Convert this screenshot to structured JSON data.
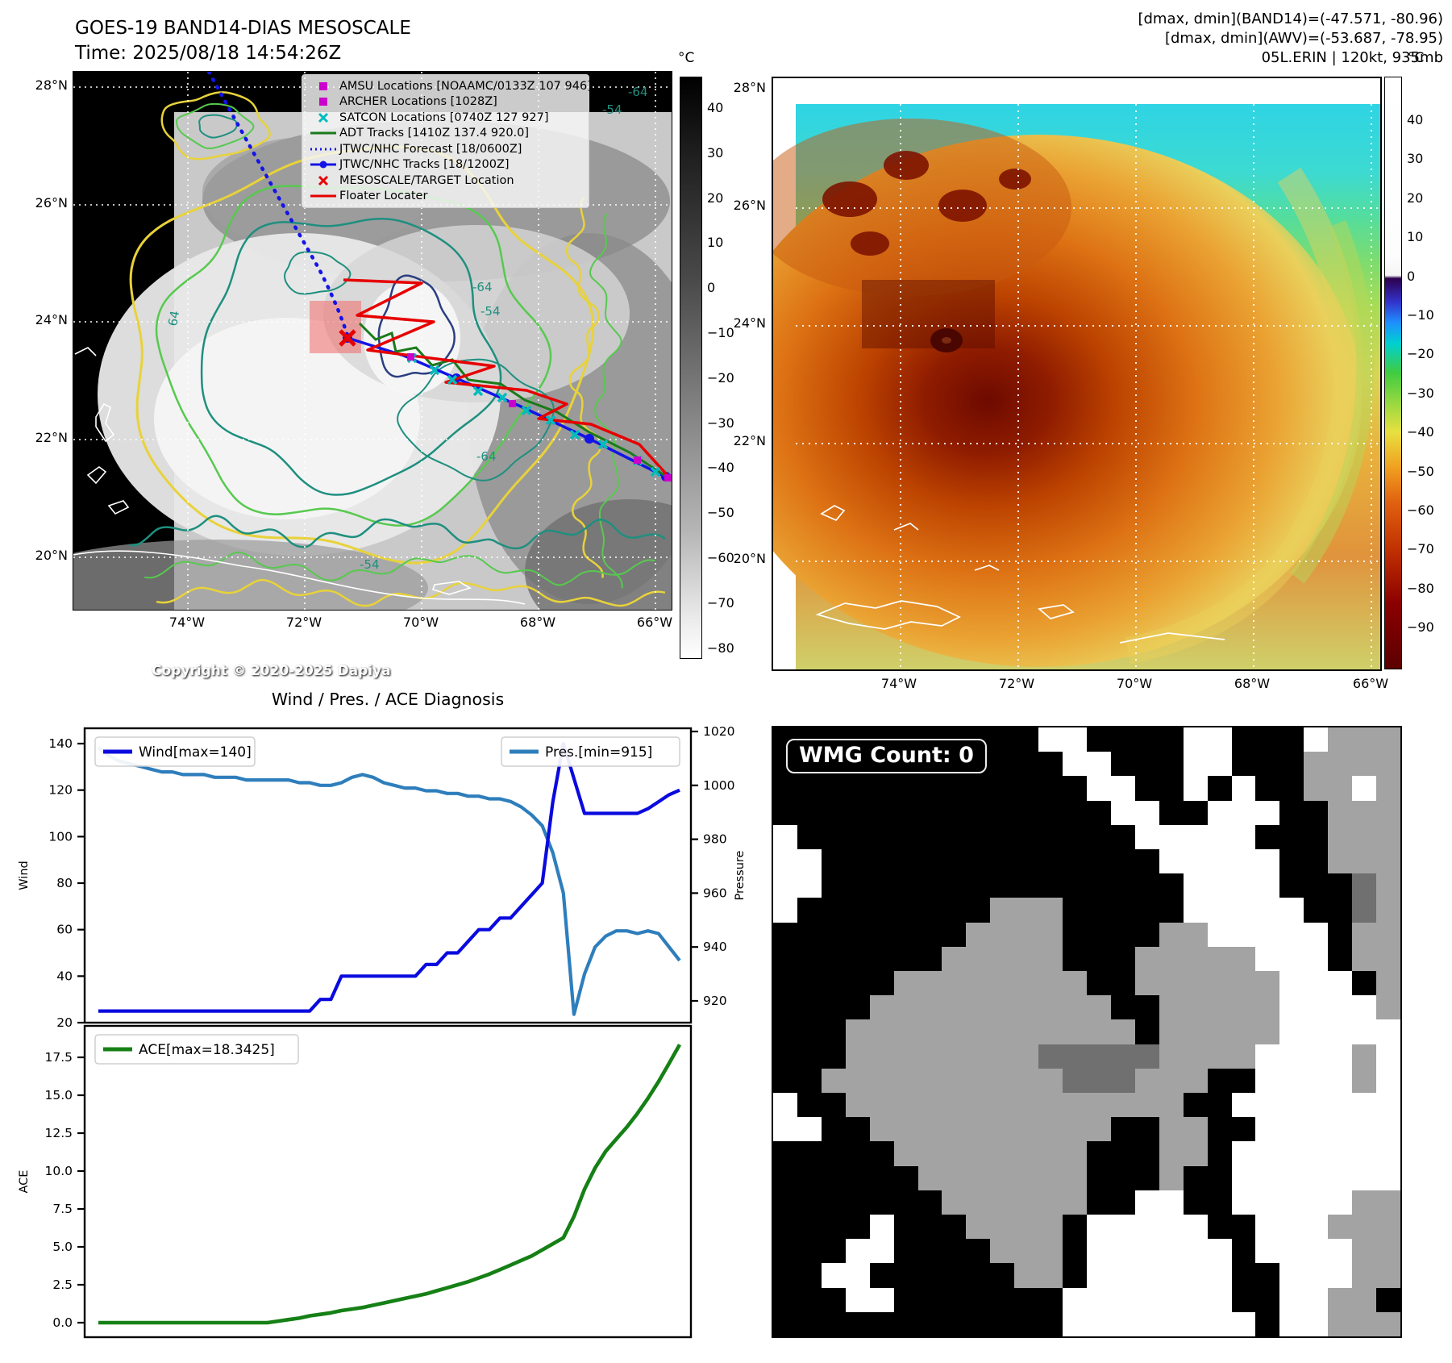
{
  "header_left": {
    "title": "GOES-19 BAND14-DIAS MESOSCALE",
    "time": "Time: 2025/08/18 14:54:26Z"
  },
  "header_right": {
    "line1": "[dmax, dmin](BAND14)=(-47.571, -80.96)",
    "line2": "[dmax, dmin](AWV)=(-53.687, -78.95)",
    "line3": "05L.ERIN | 120kt, 935mb"
  },
  "left_map": {
    "copyright": "Copyright © 2020-2025 Dapiya",
    "lat_ticks": [
      "28°N",
      "26°N",
      "24°N",
      "22°N",
      "20°N"
    ],
    "lon_ticks": [
      "74°W",
      "72°W",
      "70°W",
      "68°W",
      "66°W"
    ],
    "contour_labels": [
      "-64",
      "-54",
      "-64",
      "-54",
      "64",
      "-64",
      "-54"
    ],
    "colorbar": {
      "unit": "°C",
      "ticks": [
        40,
        30,
        20,
        10,
        0,
        -10,
        -20,
        -30,
        -40,
        -50,
        -60,
        -70,
        -80
      ]
    },
    "legend": [
      {
        "label": "AMSU Locations [NOAAMC/0133Z 107 946]",
        "marker": "square",
        "color": "#cc00cc"
      },
      {
        "label": "ARCHER Locations [1028Z]",
        "marker": "square",
        "color": "#cc00cc"
      },
      {
        "label": "SATCON Locations [0740Z 127 927]",
        "marker": "x",
        "color": "#00bcbc"
      },
      {
        "label": "ADT Tracks [1410Z 137.4 920.0]",
        "marker": "line",
        "color": "#1a7a1a"
      },
      {
        "label": "JTWC/NHC Forecast [18/0600Z]",
        "marker": "dotted",
        "color": "#1414e6"
      },
      {
        "label": "JTWC/NHC Tracks [18/1200Z]",
        "marker": "line-dot",
        "color": "#1414e6"
      },
      {
        "label": "MESOSCALE/TARGET Location",
        "marker": "x",
        "color": "#e60000"
      },
      {
        "label": "Floater Locater",
        "marker": "line",
        "color": "#e60000"
      }
    ]
  },
  "right_map": {
    "lat_ticks": [
      "28°N",
      "26°N",
      "24°N",
      "22°N",
      "20°N"
    ],
    "lon_ticks": [
      "74°W",
      "72°W",
      "70°W",
      "68°W",
      "66°W"
    ],
    "colorbar": {
      "unit": "°C",
      "ticks": [
        40,
        30,
        20,
        10,
        0,
        -10,
        -20,
        -30,
        -40,
        -50,
        -60,
        -70,
        -80,
        -90
      ]
    }
  },
  "wmg": {
    "label": "WMG Count: 0",
    "palette": {
      "b": "#000000",
      "w": "#ffffff",
      "g": "#a3a3a3",
      "d": "#707070"
    },
    "grid": [
      "bbbbbbbbbbbwwbbbbwwbbbwggg",
      "bbbbbbbbbbbbwwbbbwwbbbgggg",
      "bbbbbbbbbbbbbwwbbwbwbbggwg",
      "bbbbbbbbbbbbbbwwbbwwwbbggg",
      "wbbbbbbbbbbbbbbwwwwwbbbggg",
      "wwbbbbbbbbbbbbbbwwwwwbbggg",
      "wwbbbbbbbbbbbbbbbwwwwbbbdg",
      "wbbbbbbbbgggbbbbbwwwwwbbdg",
      "bbbbbbbbggggbbbbggwwwwwbgg",
      "bbbbbbbgggggbbbgggggwwwbgg",
      "bbbbbggggggggbbggggggwwwbg",
      "bbbbggggggggggbbgggggwwwwg",
      "bbbggggggggggggbgggggwwwww",
      "bbbggggggggdddddggggwwwwgw",
      "bbggggggggggdddgggbbwwwwgw",
      "wbbggggggggggggggbbwwwwwww",
      "wwbbggggggggggbbggbbwwwwww",
      "bbbbbggggggggbbbggbwwwwwww",
      "bbbbbbgggggggbbbgbbwwwwwww",
      "bbbbbbbggggggbbwwbbwwwwwgg",
      "bbbbwbbbggggbwwwwwbbwwwggg",
      "bbbwwbbbbgggbwwwwwwbwwwwgg",
      "bbwwbbbbbbggbwwwwwwbbwwwgg",
      "bbbwwbbbbbbbwwwwwwwbbwwggb",
      "bbbbbbbbbbbbwwwwwwwwbwwggg"
    ]
  },
  "chart_data": [
    {
      "type": "line",
      "title": "Wind / Pres. / ACE Diagnosis",
      "xlabel": "",
      "ylabel_left": "Wind",
      "ylabel_right": "Pressure",
      "ylim_left": [
        20,
        146
      ],
      "ylim_right": [
        915,
        1022
      ],
      "yticks_left": [
        140,
        120,
        100,
        80,
        60,
        40,
        20
      ],
      "yticks_right": [
        1020,
        1000,
        980,
        960,
        940,
        920
      ],
      "grid": false,
      "legend_position": "upper-left and upper-right",
      "series": [
        {
          "name": "Wind[max=140]",
          "axis": "left",
          "color": "#0a0adf",
          "values": [
            25,
            25,
            25,
            25,
            25,
            25,
            25,
            25,
            25,
            25,
            25,
            25,
            25,
            25,
            25,
            25,
            25,
            25,
            25,
            25,
            25,
            30,
            30,
            40,
            40,
            40,
            40,
            40,
            40,
            40,
            40,
            45,
            45,
            50,
            50,
            55,
            60,
            60,
            65,
            65,
            70,
            75,
            80,
            115,
            140,
            125,
            110,
            110,
            110,
            110,
            110,
            110,
            112,
            115,
            118,
            120
          ]
        },
        {
          "name": "Pres.[min=915]",
          "axis": "right",
          "color": "#2e7ebc",
          "values": [
            1014,
            1011,
            1009,
            1008,
            1007,
            1006,
            1005,
            1005,
            1004,
            1004,
            1004,
            1003,
            1003,
            1003,
            1002,
            1002,
            1002,
            1002,
            1002,
            1001,
            1001,
            1000,
            1000,
            1001,
            1003,
            1004,
            1003,
            1001,
            1000,
            999,
            999,
            998,
            998,
            997,
            997,
            996,
            996,
            995,
            995,
            994,
            992,
            989,
            985,
            975,
            960,
            915,
            930,
            940,
            944,
            946,
            946,
            945,
            946,
            945,
            940,
            935
          ]
        }
      ]
    },
    {
      "type": "line",
      "title": "",
      "xlabel": "",
      "ylabel_left": "ACE",
      "ylim_left": [
        -0.9,
        19.5
      ],
      "yticks_left": [
        "17.5",
        "15.0",
        "12.5",
        "10.0",
        "7.5",
        "5.0",
        "2.5",
        "0.0"
      ],
      "grid": false,
      "legend_position": "upper-left",
      "series": [
        {
          "name": "ACE[max=18.3425]",
          "axis": "left",
          "color": "#158015",
          "values": [
            0,
            0,
            0,
            0,
            0,
            0,
            0,
            0,
            0,
            0,
            0,
            0,
            0,
            0,
            0,
            0,
            0,
            0.1,
            0.2,
            0.3,
            0.45,
            0.55,
            0.65,
            0.8,
            0.9,
            1.0,
            1.15,
            1.3,
            1.45,
            1.6,
            1.75,
            1.9,
            2.1,
            2.3,
            2.5,
            2.7,
            2.95,
            3.2,
            3.5,
            3.8,
            4.1,
            4.4,
            4.8,
            5.2,
            5.6,
            7.0,
            8.8,
            10.2,
            11.3,
            12.1,
            12.9,
            13.8,
            14.8,
            15.9,
            17.1,
            18.3425
          ]
        }
      ]
    }
  ]
}
